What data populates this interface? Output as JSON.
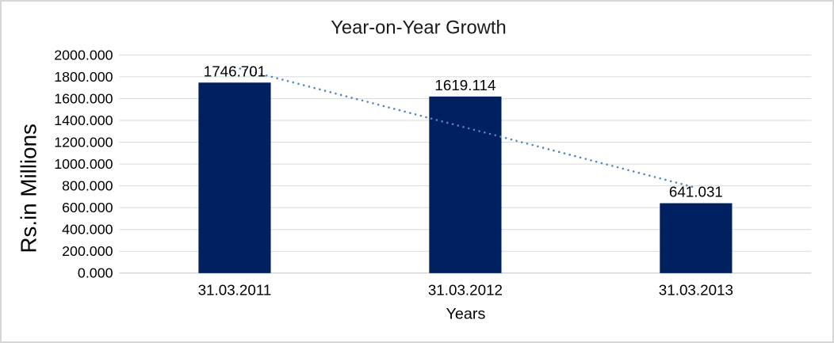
{
  "chart_data": {
    "type": "bar",
    "title": "Year-on-Year Growth",
    "xlabel": "Years",
    "ylabel": "Rs.in Millions",
    "categories": [
      "31.03.2011",
      "31.03.2012",
      "31.03.2013"
    ],
    "values": [
      1746.701,
      1619.114,
      641.031
    ],
    "data_labels": [
      "1746.701",
      "1619.114",
      "641.031"
    ],
    "ylim": [
      0,
      2000
    ],
    "ytick_step": 200,
    "yticks": [
      "0.000",
      "200.000",
      "400.000",
      "600.000",
      "800.000",
      "1000.000",
      "1200.000",
      "1400.000",
      "1600.000",
      "1800.000",
      "2000.000"
    ],
    "grid": true,
    "legend": false,
    "trendline": {
      "type": "linear",
      "style": "dotted"
    }
  },
  "colors": {
    "bar": "#002060",
    "trendline": "#4f86c6",
    "gridline": "#d9d9d9",
    "axis_line": "#c3c3c3",
    "text": "#000000",
    "border": "#d6d6d6",
    "background": "#ffffff"
  }
}
